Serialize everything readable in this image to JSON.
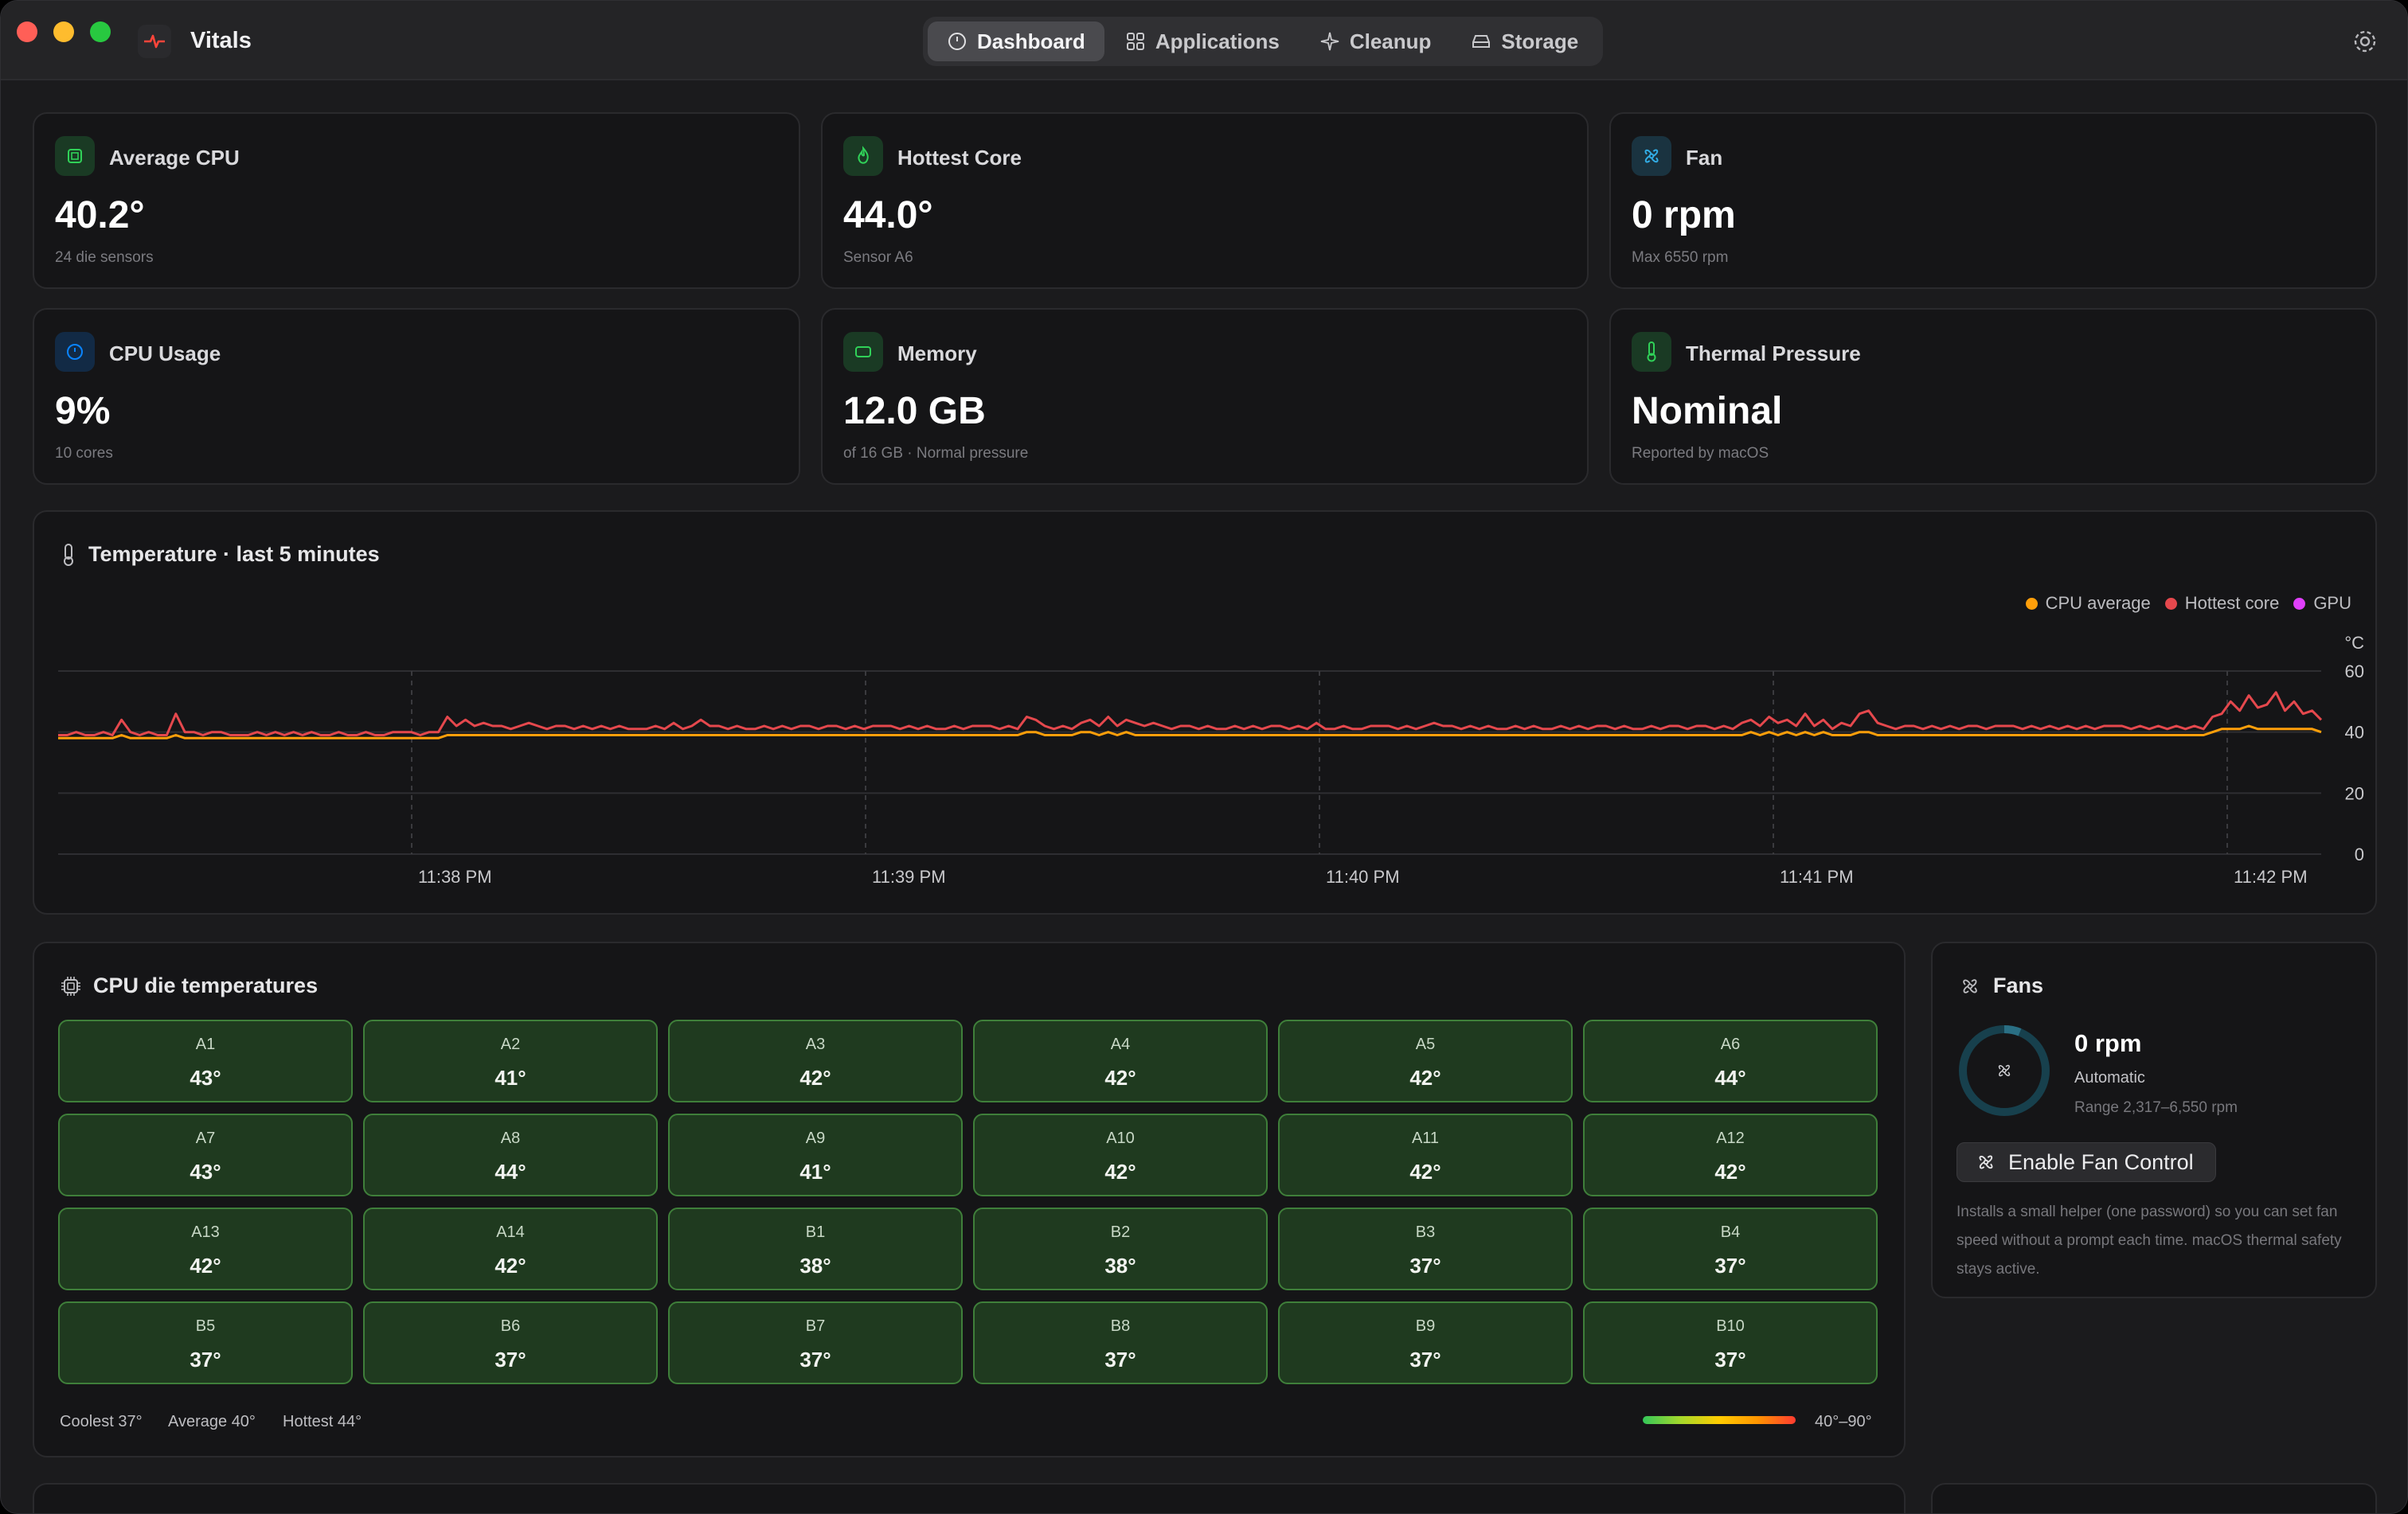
{
  "app": {
    "title": "Vitals"
  },
  "nav": {
    "tabs": [
      {
        "label": "Dashboard",
        "icon": "gauge-icon",
        "active": true
      },
      {
        "label": "Applications",
        "icon": "grid-icon",
        "active": false
      },
      {
        "label": "Cleanup",
        "icon": "sparkle-icon",
        "active": false
      },
      {
        "label": "Storage",
        "icon": "drive-icon",
        "active": false
      }
    ]
  },
  "stats": [
    {
      "label": "Average CPU",
      "value": "40.2°",
      "sub": "24 die sensors",
      "icon": "chip-icon",
      "color": "#30d158"
    },
    {
      "label": "Hottest Core",
      "value": "44.0°",
      "sub": "Sensor A6",
      "icon": "flame-icon",
      "color": "#30d158"
    },
    {
      "label": "Fan",
      "value": "0 rpm",
      "sub": "Max 6550 rpm",
      "icon": "fan-icon",
      "color": "#32ade6"
    },
    {
      "label": "CPU Usage",
      "value": "9%",
      "sub": "10 cores",
      "icon": "gauge-icon",
      "color": "#0a84ff"
    },
    {
      "label": "Memory",
      "value": "12.0 GB",
      "sub": "of 16 GB · Normal pressure",
      "icon": "memory-icon",
      "color": "#30d158"
    },
    {
      "label": "Thermal Pressure",
      "value": "Nominal",
      "sub": "Reported by macOS",
      "icon": "thermometer-icon",
      "color": "#30d158"
    }
  ],
  "temperature": {
    "title": "Temperature · last 5 minutes",
    "unit": "°C",
    "legend": [
      {
        "name": "CPU average",
        "color": "#ff9f0a"
      },
      {
        "name": "Hottest core",
        "color": "#e5484d"
      },
      {
        "name": "GPU",
        "color": "#e040fb"
      }
    ]
  },
  "chart_data": {
    "type": "line",
    "title": "Temperature · last 5 minutes",
    "ylabel": "°C",
    "ylim": [
      0,
      60
    ],
    "yticks": [
      0,
      20,
      40,
      60
    ],
    "xticks": [
      "11:38 PM",
      "11:39 PM",
      "11:40 PM",
      "11:41 PM",
      "11:42 PM"
    ],
    "grid": true,
    "legend_position": "top-right",
    "series": [
      {
        "name": "Hottest core",
        "color": "#e5484d",
        "values": [
          39,
          39,
          40,
          39,
          39,
          40,
          39,
          44,
          40,
          39,
          40,
          39,
          39,
          46,
          40,
          40,
          39,
          40,
          40,
          39,
          39,
          39,
          40,
          39,
          40,
          39,
          40,
          39,
          40,
          39,
          39,
          40,
          39,
          39,
          40,
          39,
          39,
          40,
          40,
          40,
          39,
          40,
          40,
          45,
          42,
          44,
          42,
          43,
          42,
          42,
          41,
          42,
          43,
          42,
          41,
          42,
          42,
          41,
          42,
          41,
          42,
          41,
          42,
          41,
          41,
          41,
          42,
          41,
          43,
          41,
          42,
          44,
          42,
          42,
          41,
          42,
          41,
          41,
          42,
          41,
          42,
          41,
          42,
          42,
          41,
          42,
          42,
          41,
          42,
          41,
          42,
          42,
          42,
          41,
          42,
          41,
          42,
          41,
          41,
          42,
          41,
          42,
          42,
          42,
          41,
          42,
          41,
          45,
          44,
          42,
          41,
          42,
          41,
          43,
          44,
          42,
          45,
          42,
          44,
          43,
          42,
          43,
          42,
          41,
          42,
          42,
          41,
          42,
          41,
          41,
          42,
          41,
          42,
          41,
          42,
          42,
          41,
          42,
          41,
          43,
          41,
          41,
          42,
          41,
          41,
          42,
          42,
          42,
          41,
          42,
          41,
          42,
          43,
          42,
          42,
          41,
          42,
          41,
          42,
          41,
          41,
          42,
          41,
          42,
          41,
          41,
          42,
          41,
          42,
          41,
          42,
          42,
          41,
          42,
          41,
          41,
          42,
          41,
          42,
          42,
          41,
          42,
          42,
          41,
          42,
          41,
          43,
          44,
          42,
          45,
          43,
          44,
          42,
          46,
          42,
          44,
          41,
          43,
          42,
          46,
          47,
          43,
          42,
          41,
          42,
          42,
          41,
          42,
          41,
          42,
          41,
          42,
          42,
          41,
          42,
          42,
          42,
          41,
          42,
          41,
          42,
          41,
          42,
          41,
          42,
          41,
          42,
          42,
          42,
          41,
          42,
          41,
          42,
          41,
          42,
          41,
          42,
          41,
          45,
          46,
          50,
          47,
          52,
          48,
          49,
          53,
          47,
          50,
          46,
          47,
          44
        ],
        "note": "sampled series"
      },
      {
        "name": "CPU average",
        "color": "#ff9f0a",
        "values": [
          38,
          38,
          38,
          38,
          38,
          38,
          38,
          39,
          38,
          38,
          38,
          38,
          38,
          39,
          38,
          38,
          38,
          38,
          38,
          38,
          38,
          38,
          38,
          38,
          38,
          38,
          38,
          38,
          38,
          38,
          38,
          38,
          38,
          38,
          38,
          38,
          38,
          38,
          38,
          38,
          38,
          38,
          38,
          39,
          39,
          39,
          39,
          39,
          39,
          39,
          39,
          39,
          39,
          39,
          39,
          39,
          39,
          39,
          39,
          39,
          39,
          39,
          39,
          39,
          39,
          39,
          39,
          39,
          39,
          39,
          39,
          39,
          39,
          39,
          39,
          39,
          39,
          39,
          39,
          39,
          39,
          39,
          39,
          39,
          39,
          39,
          39,
          39,
          39,
          39,
          39,
          39,
          39,
          39,
          39,
          39,
          39,
          39,
          39,
          39,
          39,
          39,
          39,
          39,
          39,
          39,
          39,
          40,
          40,
          39,
          39,
          39,
          39,
          40,
          40,
          39,
          40,
          39,
          40,
          39,
          39,
          39,
          39,
          39,
          39,
          39,
          39,
          39,
          39,
          39,
          39,
          39,
          39,
          39,
          39,
          39,
          39,
          39,
          39,
          39,
          39,
          39,
          39,
          39,
          39,
          39,
          39,
          39,
          39,
          39,
          39,
          39,
          39,
          39,
          39,
          39,
          39,
          39,
          39,
          39,
          39,
          39,
          39,
          39,
          39,
          39,
          39,
          39,
          39,
          39,
          39,
          39,
          39,
          39,
          39,
          39,
          39,
          39,
          39,
          39,
          39,
          39,
          39,
          39,
          39,
          39,
          39,
          40,
          39,
          40,
          39,
          40,
          39,
          40,
          39,
          40,
          39,
          39,
          39,
          40,
          40,
          39,
          39,
          39,
          39,
          39,
          39,
          39,
          39,
          39,
          39,
          39,
          39,
          39,
          39,
          39,
          39,
          39,
          39,
          39,
          39,
          39,
          39,
          39,
          39,
          39,
          39,
          39,
          39,
          39,
          39,
          39,
          39,
          39,
          39,
          39,
          39,
          39,
          40,
          41,
          41,
          41,
          42,
          41,
          41,
          41,
          41,
          41,
          41,
          41,
          40
        ]
      }
    ]
  },
  "cpu_die": {
    "title": "CPU die temperatures",
    "cells": [
      {
        "name": "A1",
        "temp": "43°"
      },
      {
        "name": "A2",
        "temp": "41°"
      },
      {
        "name": "A3",
        "temp": "42°"
      },
      {
        "name": "A4",
        "temp": "42°"
      },
      {
        "name": "A5",
        "temp": "42°"
      },
      {
        "name": "A6",
        "temp": "44°"
      },
      {
        "name": "A7",
        "temp": "43°"
      },
      {
        "name": "A8",
        "temp": "44°"
      },
      {
        "name": "A9",
        "temp": "41°"
      },
      {
        "name": "A10",
        "temp": "42°"
      },
      {
        "name": "A11",
        "temp": "42°"
      },
      {
        "name": "A12",
        "temp": "42°"
      },
      {
        "name": "A13",
        "temp": "42°"
      },
      {
        "name": "A14",
        "temp": "42°"
      },
      {
        "name": "B1",
        "temp": "38°"
      },
      {
        "name": "B2",
        "temp": "38°"
      },
      {
        "name": "B3",
        "temp": "37°"
      },
      {
        "name": "B4",
        "temp": "37°"
      },
      {
        "name": "B5",
        "temp": "37°"
      },
      {
        "name": "B6",
        "temp": "37°"
      },
      {
        "name": "B7",
        "temp": "37°"
      },
      {
        "name": "B8",
        "temp": "37°"
      },
      {
        "name": "B9",
        "temp": "37°"
      },
      {
        "name": "B10",
        "temp": "37°"
      }
    ],
    "coolest": "Coolest 37°",
    "average": "Average 40°",
    "hottest": "Hottest 44°",
    "range": "40°–90°"
  },
  "fans": {
    "title": "Fans",
    "speed": "0 rpm",
    "mode": "Automatic",
    "range": "Range 2,317–6,550 rpm",
    "button": "Enable Fan Control",
    "description": "Installs a small helper (one password) so you can set fan speed without a prompt each time. macOS thermal safety stays active."
  }
}
